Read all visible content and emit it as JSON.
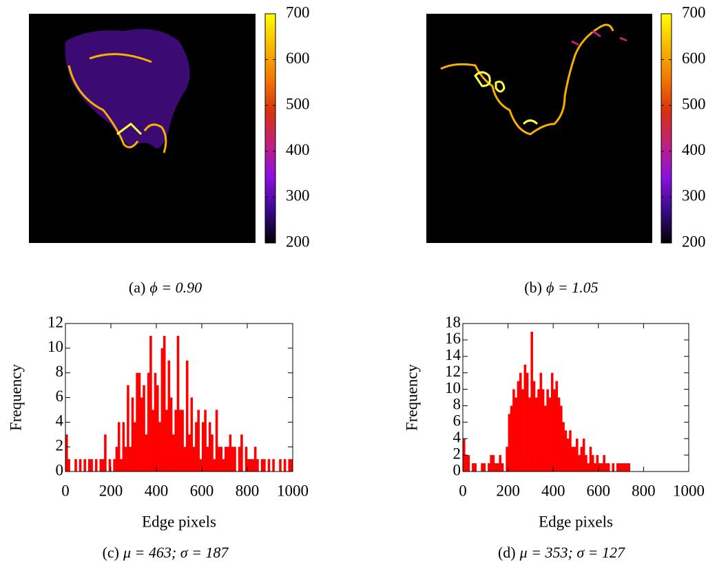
{
  "chart_data": [
    {
      "type": "heatmap",
      "label": "(a)",
      "caption": "ϕ = 0.90",
      "clim": [
        200,
        700
      ],
      "cticks": [
        200,
        300,
        400,
        500,
        600,
        700
      ],
      "colormap": [
        "#000000",
        "#3a0a8a",
        "#8a10e0",
        "#c02080",
        "#d83010",
        "#f07800",
        "#f8b800",
        "#ffff00"
      ]
    },
    {
      "type": "heatmap",
      "label": "(b)",
      "caption": "ϕ = 1.05",
      "clim": [
        200,
        700
      ],
      "cticks": [
        200,
        300,
        400,
        500,
        600,
        700
      ],
      "colormap": [
        "#000000",
        "#3a0a8a",
        "#8a10e0",
        "#c02080",
        "#d83010",
        "#f07800",
        "#f8b800",
        "#ffff00"
      ]
    },
    {
      "type": "histogram",
      "label": "(c)",
      "caption": "μ = 463; σ = 187",
      "xlabel": "Edge pixels",
      "ylabel": "Frequency",
      "color": "#ff0000",
      "bins": [
        0,
        10,
        20,
        30,
        40,
        50,
        60,
        70,
        80,
        90,
        100,
        110,
        120,
        130,
        140,
        150,
        160,
        170,
        180,
        190,
        200,
        210,
        220,
        230,
        240,
        250,
        260,
        270,
        280,
        290,
        300,
        310,
        320,
        330,
        340,
        350,
        360,
        370,
        380,
        390,
        400,
        410,
        420,
        430,
        440,
        450,
        460,
        470,
        480,
        490,
        500,
        510,
        520,
        530,
        540,
        550,
        560,
        570,
        580,
        590,
        600,
        610,
        620,
        630,
        640,
        650,
        660,
        670,
        680,
        690,
        700,
        710,
        720,
        730,
        740,
        750,
        760,
        770,
        780,
        790,
        800,
        810,
        820,
        830,
        840,
        850,
        860,
        870,
        880,
        890,
        900,
        910,
        920,
        930,
        940,
        950,
        960,
        970,
        980,
        990,
        1000
      ],
      "values": [
        3,
        1,
        0,
        0,
        1,
        0,
        1,
        0,
        1,
        0,
        1,
        1,
        0,
        1,
        0,
        1,
        1,
        3,
        0,
        1,
        0,
        1,
        2,
        4,
        1,
        4,
        2,
        7,
        2,
        6,
        4,
        8,
        8,
        6,
        7,
        3,
        8,
        11,
        5,
        8,
        7,
        4,
        10,
        11,
        5,
        9,
        6,
        3,
        5,
        11,
        5,
        5,
        2,
        9,
        3,
        6,
        2,
        4,
        5,
        1,
        4,
        5,
        2,
        4,
        3,
        1,
        5,
        2,
        2,
        1,
        2,
        2,
        3,
        2,
        2,
        0,
        2,
        3,
        0,
        2,
        1,
        1,
        1,
        2,
        1,
        0,
        1,
        1,
        0,
        1,
        0,
        1,
        0,
        0,
        1,
        0,
        1,
        0,
        1,
        1
      ],
      "xlim": [
        0,
        1000
      ],
      "ylim": [
        0,
        12
      ],
      "xticks": [
        0,
        200,
        400,
        600,
        800,
        1000
      ],
      "yticks": [
        0,
        2,
        4,
        6,
        8,
        10,
        12
      ]
    },
    {
      "type": "histogram",
      "label": "(d)",
      "caption": "μ = 353; σ = 127",
      "xlabel": "Edge pixels",
      "ylabel": "Frequency",
      "color": "#ff0000",
      "bins": [
        0,
        10,
        20,
        30,
        40,
        50,
        60,
        70,
        80,
        90,
        100,
        110,
        120,
        130,
        140,
        150,
        160,
        170,
        180,
        190,
        200,
        210,
        220,
        230,
        240,
        250,
        260,
        270,
        280,
        290,
        300,
        310,
        320,
        330,
        340,
        350,
        360,
        370,
        380,
        390,
        400,
        410,
        420,
        430,
        440,
        450,
        460,
        470,
        480,
        490,
        500,
        510,
        520,
        530,
        540,
        550,
        560,
        570,
        580,
        590,
        600,
        610,
        620,
        630,
        640,
        650,
        660,
        670,
        680,
        690,
        700,
        710,
        720,
        730,
        740,
        750,
        760,
        770,
        780,
        790,
        800,
        810,
        820,
        830,
        840,
        850,
        860,
        870,
        880,
        890,
        900,
        910,
        920,
        930,
        940,
        950,
        960,
        970,
        980,
        990,
        1000
      ],
      "values": [
        4,
        2,
        2,
        0,
        1,
        1,
        0,
        0,
        1,
        1,
        0,
        1,
        2,
        2,
        1,
        1,
        2,
        1,
        0,
        3,
        7,
        8,
        10,
        9,
        11,
        12,
        10,
        13,
        12,
        9,
        17,
        11,
        9,
        10,
        12,
        10,
        8,
        10,
        9,
        12,
        10,
        11,
        9,
        8,
        6,
        5,
        4,
        5,
        3,
        3,
        4,
        2,
        3,
        4,
        2,
        1,
        3,
        2,
        1,
        2,
        1,
        1,
        2,
        1,
        1,
        0,
        1,
        0,
        1,
        1,
        1,
        1,
        1,
        1,
        0,
        0,
        0,
        0,
        0,
        0,
        0,
        0,
        0,
        0,
        0,
        0,
        0,
        0,
        0,
        0,
        0,
        0,
        0,
        0,
        0,
        0,
        0,
        0,
        0,
        0
      ],
      "xlim": [
        0,
        1000
      ],
      "ylim": [
        0,
        18
      ],
      "xticks": [
        0,
        200,
        400,
        600,
        800,
        1000
      ],
      "yticks": [
        0,
        2,
        4,
        6,
        8,
        10,
        12,
        14,
        16,
        18
      ]
    }
  ]
}
